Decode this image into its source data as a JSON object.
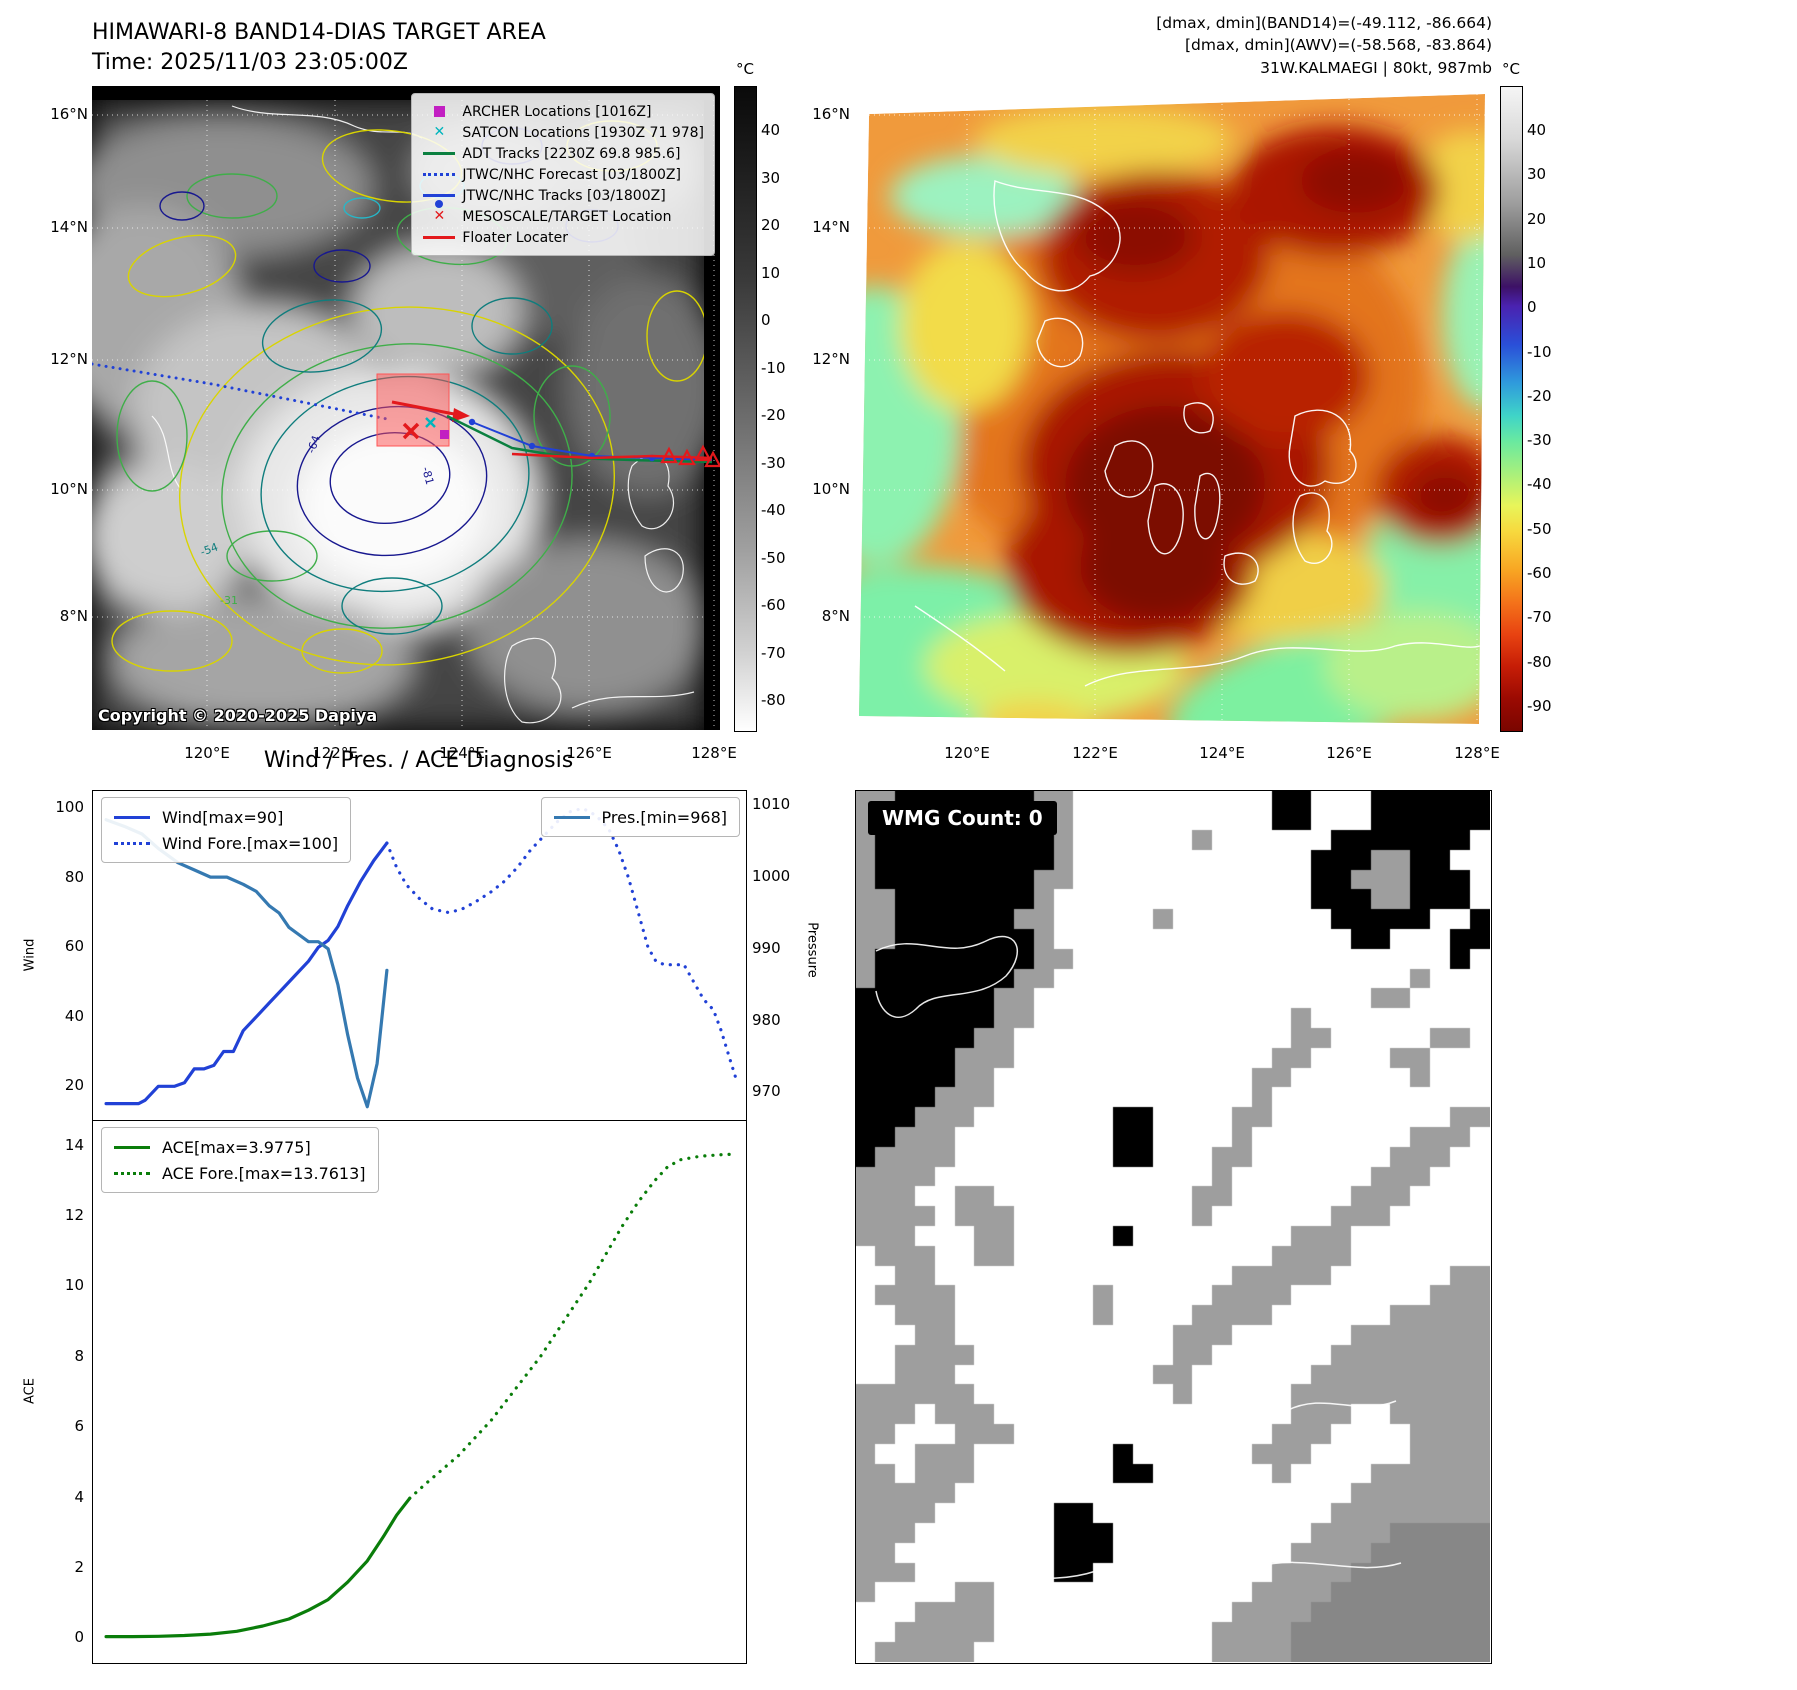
{
  "band14": {
    "title": "HIMAWARI-8 BAND14-DIAS TARGET AREA",
    "time": "Time: 2025/11/03 23:05:00Z",
    "copyright": "Copyright © 2020-2025 Dapiya",
    "colorbar": {
      "label": "°C",
      "ticks": [
        "40",
        "30",
        "20",
        "10",
        "0",
        "-10",
        "-20",
        "-30",
        "-40",
        "-50",
        "-60",
        "-70",
        "-80"
      ]
    },
    "x_ticks": [
      "120°E",
      "122°E",
      "124°E",
      "126°E",
      "128°E"
    ],
    "y_ticks": [
      "16°N",
      "14°N",
      "12°N",
      "10°N",
      "8°N"
    ],
    "legend": [
      {
        "marker": "square-magenta",
        "label": "ARCHER Locations [1016Z]"
      },
      {
        "marker": "x-cyan",
        "label": "SATCON Locations [1930Z 71 978]"
      },
      {
        "marker": "line-green",
        "label": "ADT Tracks [2230Z 69.8 985.6]"
      },
      {
        "marker": "dotted-blue",
        "label": "JTWC/NHC Forecast [03/1800Z]"
      },
      {
        "marker": "line-dot-blue",
        "label": "JTWC/NHC Tracks [03/1800Z]"
      },
      {
        "marker": "x-red",
        "label": "MESOSCALE/TARGET Location"
      },
      {
        "marker": "line-red",
        "label": "Floater Locater"
      }
    ],
    "contour_labels": [
      "-54",
      "-64",
      "-31",
      "-81"
    ]
  },
  "awv": {
    "info_lines": [
      "[dmax, dmin](BAND14)=(-49.112, -86.664)",
      "[dmax, dmin](AWV)=(-58.568, -83.864)",
      "31W.KALMAEGI | 80kt, 987mb"
    ],
    "colorbar": {
      "label": "°C",
      "ticks": [
        "40",
        "30",
        "20",
        "10",
        "0",
        "-10",
        "-20",
        "-30",
        "-40",
        "-50",
        "-60",
        "-70",
        "-80",
        "-90"
      ]
    },
    "x_ticks": [
      "120°E",
      "122°E",
      "124°E",
      "126°E",
      "128°E"
    ],
    "y_ticks": [
      "16°N",
      "14°N",
      "12°N",
      "10°N",
      "8°N"
    ]
  },
  "wmg": {
    "label": "WMG Count: 0",
    "colors": {
      "B": "#000000",
      "W": "#ffffff",
      "G": "#9e9e9e",
      "D": "#878787"
    },
    "grid_rows": [
      "GGBBBBBBBGGWWWWWWWWWWBBWWWBBBBBB",
      "GGBBBBBBBBGWWWWWWWWWWBBWWWBBBBBB",
      "GBBBBBBBBBGWWWWWWGWWWWWWBBBBBBBW",
      "GBBBBBBBBBGWWWWWWWWWWWWBBBGGBBWW",
      "GBBBBBBBBGGWWWWWWWWWWWWBBGGGBBBW",
      "GGBBBBBBBGWWWWWWWWWWWWWBBBGGBBBW",
      "GGBBBBBBGGWWWWWGWWWWWWWWBBBBBWWB",
      "GGBBBBBBBGWWWWWWWWWWWWWWWBBWWWBB",
      "GBBBBBBBBGGWWWWWWWWWWWWWWWWWWWBW",
      "GBBBBBBBGGWWWWWWWWWWWWWWWWWWGWWW",
      "BBBBBBBGGWWWWWWWWWWWWWWWWWGGWWWW",
      "BBBBBBBGGWWWWWWWWWWWWWGWWWWWWWWW",
      "BBBBBBGGWWWWWWWWWWWWWWGGWWWWWGGW",
      "BBBBBGGGWWWWWWWWWWWWWGGWWWWGGWWW",
      "BBBBBGGWWWWWWWWWWWWWGGWWWWWWGWWW",
      "BBBBGGGWWWWWWWWWWWWWGWWWWWWWWWWW",
      "BBBGGGWWWWWWWBBWWWWGGWWWWWWWWWGG",
      "BBGGGWWWWWWWWBBWWWWGWWWWWWWWGGGW",
      "BGGGGWWWWWWWWBBWWWGGWWWWWWWGGGWW",
      "GGGGWWWWWWWWWWWWWWGWWWWWWWGGGWWW",
      "GGGWWGGWWWWWWWWWWGGWWWWWWGGGWWWW",
      "GGGGWGGGWWWWWWWWWGWWWWWWGGGWWWWW",
      "GGGWWWGGWWWWWBWWWWWWWWGGGWWWWWWW",
      "WGGGWWGGWWWWWWWWWWWWWGGGGWWWWWWW",
      "WWGGWWWWWWWWWWWWWWWGGGGGWWWWWWGG",
      "WGGGGWWWWWWWGWWWWWGGGGWWWWWWWGGG",
      "WWGGGWWWWWWWGWWWWGGGGWWWWWWGGGGG",
      "WWWGGWWWWWWWWWWWGGGWWWWWWGGGGGGG",
      "WWGGGGWWWWWWWWWWGGWWWWWWGGGGGGGG",
      "WWGGGWWWWWWWWWWGGWWWWWWGGGGGGGGG",
      "GGGGGGWWWWWWWWWWGWWWWWGGGGGGGGGG",
      "GGGWGGGWWWWWWWWWWWWWWWGGGWWGGGGG",
      "GGWWWGGGWWWWWWWWWWWWWGGGWWWWGGGG",
      "GWWGGGWWWWWWWBWWWWWWGGGWWWWWGGGG",
      "GGWGGGWWWWWWWBBWWWWWWGWWWWGGGGGG",
      "GGGGGWWWWWWWWWWWWWWWWWWWWGGGGGGG",
      "GGGGWWWWWWBBWWWWWWWWWWWWGGGGGGGG",
      "GGGWWWWWWWBBBWWWWWWWWWWGGGGDDDDD",
      "GGWWWWWWWWBBBWWWWWWWWWGGGGDDDDDD",
      "GGGWWWWWWWBBWWWWWWWWWGGGGDDDDDDD",
      "GWWWWGGWWWWWWWWWWWWWGGGGDDDDDDDD",
      "WWWGGGGWWWWWWWWWWWWGGGGDDDDDDDDD",
      "WWGGGGGWWWWWWWWWWWGGGGDDDDDDDDDD",
      "WGGGGGWWWWWWWWWWWWGGGGDDDDDDDDDD"
    ]
  },
  "chart_data": [
    {
      "type": "line",
      "title": "Wind / Pres. / ACE Diagnosis",
      "ylabel_left": "Wind",
      "ylabel_right": "Pressure",
      "ylim_left": [
        10,
        105
      ],
      "yticks_left": [
        20,
        40,
        60,
        80,
        100
      ],
      "ylim_right": [
        966,
        1012
      ],
      "yticks_right": [
        970,
        980,
        990,
        1000,
        1010
      ],
      "grid": false,
      "series": [
        {
          "name": "Wind",
          "label": "Wind[max=90]",
          "axis": "left",
          "style": "solid",
          "color": "#2141d6",
          "box": "left",
          "points": [
            [
              0.02,
              15
            ],
            [
              0.045,
              15
            ],
            [
              0.07,
              15
            ],
            [
              0.08,
              16
            ],
            [
              0.1,
              20
            ],
            [
              0.125,
              20
            ],
            [
              0.14,
              21
            ],
            [
              0.155,
              25
            ],
            [
              0.17,
              25
            ],
            [
              0.185,
              26
            ],
            [
              0.2,
              30
            ],
            [
              0.215,
              30
            ],
            [
              0.23,
              36
            ],
            [
              0.25,
              40
            ],
            [
              0.27,
              44
            ],
            [
              0.29,
              48
            ],
            [
              0.31,
              52
            ],
            [
              0.33,
              56
            ],
            [
              0.345,
              60
            ],
            [
              0.36,
              62
            ],
            [
              0.375,
              66
            ],
            [
              0.39,
              72
            ],
            [
              0.41,
              79
            ],
            [
              0.43,
              85
            ],
            [
              0.45,
              90
            ]
          ]
        },
        {
          "name": "Wind Fore.",
          "label": "Wind Fore.[max=100]",
          "axis": "left",
          "style": "dotted",
          "color": "#2141d6",
          "box": "left",
          "points": [
            [
              0.45,
              90
            ],
            [
              0.465,
              83
            ],
            [
              0.48,
              78
            ],
            [
              0.5,
              74
            ],
            [
              0.52,
              71
            ],
            [
              0.545,
              70
            ],
            [
              0.565,
              71
            ],
            [
              0.585,
              73
            ],
            [
              0.61,
              76
            ],
            [
              0.63,
              79
            ],
            [
              0.65,
              83
            ],
            [
              0.67,
              88
            ],
            [
              0.69,
              92
            ],
            [
              0.71,
              96
            ],
            [
              0.73,
              99
            ],
            [
              0.75,
              100
            ],
            [
              0.77,
              98
            ],
            [
              0.79,
              94
            ],
            [
              0.805,
              88
            ],
            [
              0.82,
              80
            ],
            [
              0.835,
              70
            ],
            [
              0.85,
              60
            ],
            [
              0.862,
              56
            ],
            [
              0.875,
              55
            ],
            [
              0.89,
              55
            ],
            [
              0.905,
              55
            ],
            [
              0.92,
              50
            ],
            [
              0.935,
              45
            ],
            [
              0.95,
              42
            ],
            [
              0.962,
              36
            ],
            [
              0.975,
              28
            ],
            [
              0.985,
              22
            ]
          ]
        },
        {
          "name": "Pres.",
          "label": "Pres.[min=968]",
          "axis": "right",
          "style": "solid",
          "color": "#3579b1",
          "box": "right",
          "points": [
            [
              0.02,
              1008
            ],
            [
              0.05,
              1007
            ],
            [
              0.075,
              1006
            ],
            [
              0.1,
              1004
            ],
            [
              0.13,
              1002
            ],
            [
              0.155,
              1001
            ],
            [
              0.18,
              1000
            ],
            [
              0.205,
              1000
            ],
            [
              0.23,
              999
            ],
            [
              0.25,
              998
            ],
            [
              0.27,
              996
            ],
            [
              0.285,
              995
            ],
            [
              0.3,
              993
            ],
            [
              0.315,
              992
            ],
            [
              0.33,
              991
            ],
            [
              0.345,
              991
            ],
            [
              0.36,
              990
            ],
            [
              0.375,
              985
            ],
            [
              0.39,
              978
            ],
            [
              0.405,
              972
            ],
            [
              0.42,
              968
            ],
            [
              0.435,
              974
            ],
            [
              0.45,
              987
            ]
          ]
        }
      ]
    },
    {
      "type": "line",
      "ylabel_left": "ACE",
      "ylim_left": [
        -0.7,
        14.7
      ],
      "yticks_left": [
        0,
        2,
        4,
        6,
        8,
        10,
        12,
        14
      ],
      "grid": false,
      "series": [
        {
          "name": "ACE",
          "label": "ACE[max=3.9775]",
          "axis": "left",
          "style": "solid",
          "color": "#0a7d0a",
          "box": "left",
          "points": [
            [
              0.02,
              0.05
            ],
            [
              0.06,
              0.05
            ],
            [
              0.1,
              0.06
            ],
            [
              0.14,
              0.08
            ],
            [
              0.18,
              0.12
            ],
            [
              0.22,
              0.2
            ],
            [
              0.26,
              0.35
            ],
            [
              0.3,
              0.55
            ],
            [
              0.33,
              0.8
            ],
            [
              0.36,
              1.1
            ],
            [
              0.39,
              1.6
            ],
            [
              0.42,
              2.2
            ],
            [
              0.445,
              2.9
            ],
            [
              0.465,
              3.5
            ],
            [
              0.485,
              3.98
            ]
          ]
        },
        {
          "name": "ACE Fore.",
          "label": "ACE Fore.[max=13.7613]",
          "axis": "left",
          "style": "dotted",
          "color": "#0a7d0a",
          "box": "left",
          "points": [
            [
              0.485,
              3.98
            ],
            [
              0.51,
              4.4
            ],
            [
              0.535,
              4.8
            ],
            [
              0.56,
              5.2
            ],
            [
              0.585,
              5.7
            ],
            [
              0.61,
              6.2
            ],
            [
              0.635,
              6.8
            ],
            [
              0.66,
              7.4
            ],
            [
              0.685,
              8.0
            ],
            [
              0.71,
              8.7
            ],
            [
              0.735,
              9.4
            ],
            [
              0.76,
              10.1
            ],
            [
              0.785,
              10.9
            ],
            [
              0.81,
              11.7
            ],
            [
              0.835,
              12.4
            ],
            [
              0.86,
              13.0
            ],
            [
              0.88,
              13.4
            ],
            [
              0.9,
              13.6
            ],
            [
              0.93,
              13.7
            ],
            [
              0.96,
              13.74
            ],
            [
              0.985,
              13.76
            ]
          ]
        }
      ]
    }
  ]
}
